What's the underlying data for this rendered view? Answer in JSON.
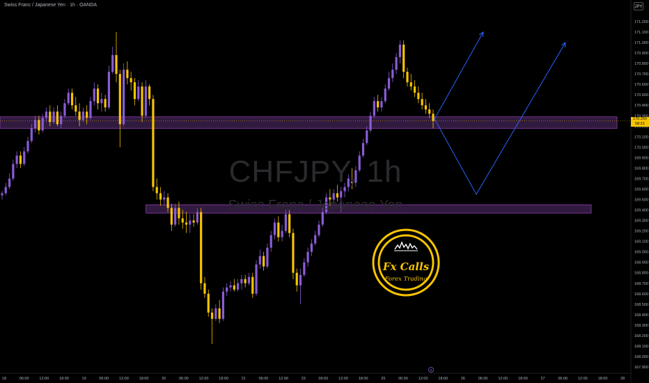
{
  "header": {
    "title": "Swiss Franc / Japanese Yen · 1h · OANDA",
    "currency_button": "JPY"
  },
  "watermark": {
    "symbol": "CHFJPY, 1h",
    "name": "Swiss Franc / Japanese Yen"
  },
  "price_tag": {
    "price": "170.250",
    "countdown": "58:21"
  },
  "logo": {
    "line1": "Fx Calls",
    "line2": "Forex Trading"
  },
  "event_marker": "8",
  "colors": {
    "background": "#000000",
    "up_candle": "#8a5cd6",
    "down_candle": "#f7c400",
    "zone_fill": "#3a1f4a",
    "zone_border": "#8c3fb0",
    "projection": "#2962ff",
    "axis_text": "#b2b5be"
  },
  "chart_data": {
    "type": "candlestick",
    "symbol": "CHFJPY",
    "timeframe": "1h",
    "ylim": [
      167.9,
      171.3
    ],
    "y_ticks": [
      "171.200",
      "171.100",
      "171.000",
      "170.900",
      "170.800",
      "170.700",
      "170.600",
      "170.500",
      "170.400",
      "170.300",
      "170.200",
      "170.100",
      "170.000",
      "169.900",
      "169.800",
      "169.700",
      "169.600",
      "169.500",
      "169.400",
      "169.300",
      "169.200",
      "169.100",
      "169.000",
      "168.900",
      "168.800",
      "168.700",
      "168.600",
      "168.500",
      "168.400",
      "168.300",
      "168.200",
      "168.100",
      "168.000",
      "167.900"
    ],
    "x_ticks": [
      "18",
      "06:00",
      "12:00",
      "18:00",
      "19",
      "06:00",
      "12:00",
      "18:00",
      "20",
      "06:00",
      "12:00",
      "18:00",
      "21",
      "06:00",
      "12:00",
      "23",
      "06:00",
      "12:00",
      "18:00",
      "25",
      "06:00",
      "12:00",
      "18:00",
      "26",
      "06:00",
      "12:00",
      "18:00",
      "27",
      "06:00",
      "12:00",
      "18:00",
      "28"
    ],
    "candles": [
      [
        169.54,
        169.58,
        169.5,
        169.56
      ],
      [
        169.56,
        169.66,
        169.54,
        169.62
      ],
      [
        169.62,
        169.75,
        169.6,
        169.7
      ],
      [
        169.7,
        169.88,
        169.68,
        169.84
      ],
      [
        169.84,
        169.96,
        169.8,
        169.92
      ],
      [
        169.92,
        169.96,
        169.8,
        169.84
      ],
      [
        169.84,
        170.0,
        169.82,
        169.96
      ],
      [
        169.96,
        170.1,
        169.94,
        170.06
      ],
      [
        170.06,
        170.22,
        170.04,
        170.18
      ],
      [
        170.18,
        170.3,
        170.14,
        170.26
      ],
      [
        170.26,
        170.3,
        170.12,
        170.16
      ],
      [
        170.16,
        170.32,
        170.14,
        170.28
      ],
      [
        170.28,
        170.38,
        170.24,
        170.34
      ],
      [
        170.34,
        170.4,
        170.2,
        170.24
      ],
      [
        170.24,
        170.38,
        170.22,
        170.34
      ],
      [
        170.34,
        170.4,
        170.2,
        170.22
      ],
      [
        170.22,
        170.34,
        170.18,
        170.3
      ],
      [
        170.3,
        170.46,
        170.28,
        170.42
      ],
      [
        170.42,
        170.56,
        170.4,
        170.52
      ],
      [
        170.52,
        170.56,
        170.36,
        170.4
      ],
      [
        170.4,
        170.48,
        170.3,
        170.34
      ],
      [
        170.34,
        170.42,
        170.2,
        170.26
      ],
      [
        170.26,
        170.38,
        170.24,
        170.34
      ],
      [
        170.34,
        170.4,
        170.22,
        170.28
      ],
      [
        170.28,
        170.48,
        170.26,
        170.44
      ],
      [
        170.44,
        170.62,
        170.4,
        170.56
      ],
      [
        170.56,
        170.6,
        170.36,
        170.42
      ],
      [
        170.42,
        170.52,
        170.34,
        170.46
      ],
      [
        170.46,
        170.5,
        170.34,
        170.38
      ],
      [
        170.38,
        170.78,
        170.36,
        170.72
      ],
      [
        170.72,
        170.96,
        170.7,
        170.88
      ],
      [
        170.88,
        171.1,
        170.62,
        170.7
      ],
      [
        170.7,
        170.74,
        170.0,
        170.22
      ],
      [
        170.22,
        170.8,
        170.2,
        170.74
      ],
      [
        170.74,
        170.82,
        170.6,
        170.66
      ],
      [
        170.66,
        170.72,
        170.54,
        170.62
      ],
      [
        170.62,
        170.66,
        170.4,
        170.46
      ],
      [
        170.46,
        170.64,
        170.44,
        170.58
      ],
      [
        170.58,
        170.62,
        170.24,
        170.3
      ],
      [
        170.3,
        170.64,
        170.28,
        170.58
      ],
      [
        170.58,
        170.6,
        170.4,
        170.46
      ],
      [
        170.46,
        170.5,
        169.58,
        169.62
      ],
      [
        169.62,
        169.7,
        169.5,
        169.56
      ],
      [
        169.56,
        169.62,
        169.44,
        169.5
      ],
      [
        169.5,
        169.58,
        169.44,
        169.52
      ],
      [
        169.52,
        169.56,
        169.38,
        169.42
      ],
      [
        169.42,
        169.46,
        169.2,
        169.26
      ],
      [
        169.26,
        169.46,
        169.24,
        169.42
      ],
      [
        169.42,
        169.48,
        169.26,
        169.32
      ],
      [
        169.32,
        169.4,
        169.22,
        169.28
      ],
      [
        169.28,
        169.38,
        169.18,
        169.26
      ],
      [
        169.26,
        169.36,
        169.18,
        169.3
      ],
      [
        169.3,
        169.36,
        169.24,
        169.28
      ],
      [
        169.28,
        169.42,
        169.26,
        169.38
      ],
      [
        169.38,
        169.42,
        168.64,
        168.7
      ],
      [
        168.7,
        168.76,
        168.56,
        168.6
      ],
      [
        168.6,
        168.64,
        168.38,
        168.42
      ],
      [
        168.42,
        168.46,
        168.12,
        168.36
      ],
      [
        168.36,
        168.5,
        168.34,
        168.46
      ],
      [
        168.46,
        168.54,
        168.32,
        168.36
      ],
      [
        168.36,
        168.66,
        168.34,
        168.62
      ],
      [
        168.62,
        168.7,
        168.58,
        168.66
      ],
      [
        168.66,
        168.72,
        168.62,
        168.68
      ],
      [
        168.68,
        168.74,
        168.62,
        168.64
      ],
      [
        168.64,
        168.74,
        168.62,
        168.7
      ],
      [
        168.7,
        168.78,
        168.64,
        168.74
      ],
      [
        168.74,
        168.78,
        168.66,
        168.7
      ],
      [
        168.7,
        168.8,
        168.68,
        168.76
      ],
      [
        168.76,
        168.8,
        168.56,
        168.6
      ],
      [
        168.6,
        168.92,
        168.58,
        168.88
      ],
      [
        168.88,
        169.02,
        168.84,
        168.96
      ],
      [
        168.96,
        169.0,
        168.82,
        168.86
      ],
      [
        168.86,
        169.08,
        168.84,
        169.04
      ],
      [
        169.04,
        169.2,
        169.0,
        169.16
      ],
      [
        169.16,
        169.32,
        169.12,
        169.28
      ],
      [
        169.28,
        169.34,
        169.1,
        169.14
      ],
      [
        169.14,
        169.26,
        169.1,
        169.2
      ],
      [
        169.2,
        169.4,
        169.18,
        169.36
      ],
      [
        169.36,
        169.4,
        169.14,
        169.18
      ],
      [
        169.18,
        169.22,
        168.74,
        168.8
      ],
      [
        168.8,
        168.84,
        168.62,
        168.68
      ],
      [
        168.68,
        168.84,
        168.5,
        168.78
      ],
      [
        168.78,
        168.94,
        168.76,
        168.9
      ],
      [
        168.9,
        169.04,
        168.86,
        169.0
      ],
      [
        169.0,
        169.12,
        168.96,
        169.08
      ],
      [
        169.08,
        169.2,
        169.06,
        169.16
      ],
      [
        169.16,
        169.3,
        169.14,
        169.26
      ],
      [
        169.26,
        169.42,
        169.24,
        169.38
      ],
      [
        169.38,
        169.56,
        169.36,
        169.52
      ],
      [
        169.52,
        169.6,
        169.44,
        169.5
      ],
      [
        169.5,
        169.6,
        169.46,
        169.56
      ],
      [
        169.56,
        169.64,
        169.48,
        169.52
      ],
      [
        169.52,
        169.62,
        169.38,
        169.58
      ],
      [
        169.58,
        169.66,
        169.52,
        169.62
      ],
      [
        169.62,
        169.74,
        169.58,
        169.7
      ],
      [
        169.7,
        169.8,
        169.6,
        169.66
      ],
      [
        169.66,
        169.82,
        169.62,
        169.78
      ],
      [
        169.78,
        169.96,
        169.76,
        169.92
      ],
      [
        169.92,
        170.08,
        169.9,
        170.04
      ],
      [
        170.04,
        170.2,
        170.02,
        170.16
      ],
      [
        170.16,
        170.34,
        170.14,
        170.3
      ],
      [
        170.3,
        170.48,
        170.28,
        170.44
      ],
      [
        170.44,
        170.5,
        170.34,
        170.38
      ],
      [
        170.38,
        170.48,
        170.34,
        170.44
      ],
      [
        170.44,
        170.6,
        170.42,
        170.56
      ],
      [
        170.56,
        170.72,
        170.54,
        170.66
      ],
      [
        170.66,
        170.8,
        170.62,
        170.74
      ],
      [
        170.74,
        170.9,
        170.7,
        170.86
      ],
      [
        170.86,
        171.02,
        170.8,
        170.98
      ],
      [
        170.98,
        171.02,
        170.66,
        170.72
      ],
      [
        170.72,
        170.76,
        170.58,
        170.62
      ],
      [
        170.62,
        170.7,
        170.54,
        170.58
      ],
      [
        170.58,
        170.64,
        170.48,
        170.52
      ],
      [
        170.52,
        170.58,
        170.42,
        170.46
      ],
      [
        170.46,
        170.52,
        170.36,
        170.4
      ],
      [
        170.4,
        170.46,
        170.32,
        170.36
      ],
      [
        170.36,
        170.42,
        170.28,
        170.32
      ],
      [
        170.32,
        170.36,
        170.18,
        170.25
      ]
    ],
    "zones": [
      {
        "top": 170.29,
        "bottom": 170.18,
        "from_candle": 11,
        "to_price_axis": true
      },
      {
        "top": 169.45,
        "bottom": 169.37,
        "from_candle": 40,
        "to_price_axis": false
      }
    ],
    "projections": [
      [
        [
          "12:00",
          170.27
        ],
        [
          "26",
          169.55
        ],
        [
          "27 06:00",
          171.0
        ]
      ],
      [
        [
          "12:00",
          170.27
        ],
        [
          "06:00",
          171.1
        ]
      ]
    ],
    "current_price": 170.25
  }
}
